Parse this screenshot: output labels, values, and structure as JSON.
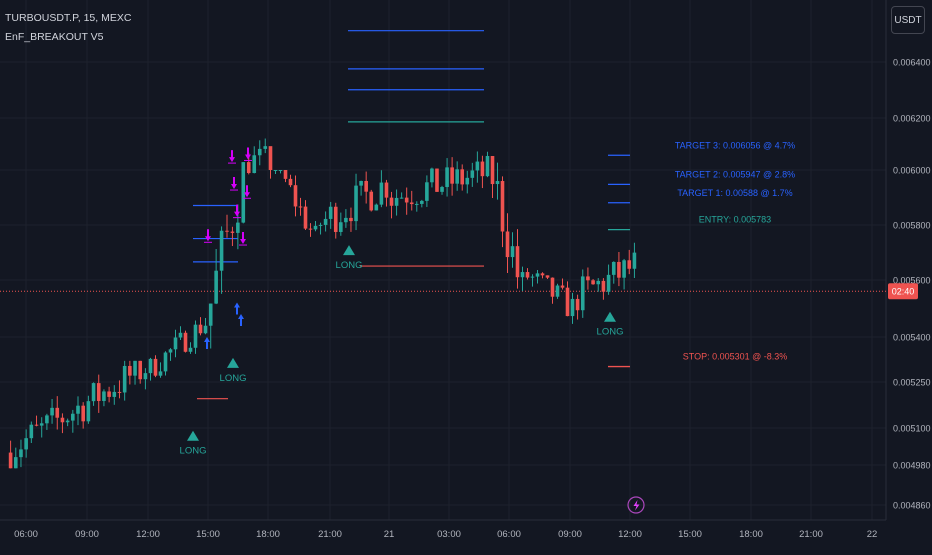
{
  "header": {
    "symbol": "TURBOUSDT.P, 15, MEXC",
    "indicator": "EnF_BREAKOUT V5",
    "currency": "USDT"
  },
  "colors": {
    "background": "#131722",
    "grid": "#1e222d",
    "up": "#26a69a",
    "down": "#ef5350",
    "signal": "#26a69a",
    "target": "#2962ff",
    "entry_line": "#26a69a",
    "stop_line": "#ef5350",
    "arrow_up": "#2962ff",
    "arrow_down": "#d500f9",
    "last_price": "#ef5350"
  },
  "chart_data": {
    "type": "candlestick",
    "x_ticks": [
      "06:00",
      "09:00",
      "12:00",
      "15:00",
      "18:00",
      "21:00",
      "21",
      "03:00",
      "06:00",
      "09:00",
      "12:00",
      "15:00",
      "18:00",
      "21:00",
      "22"
    ],
    "y_ticks": [
      "0.006400",
      "0.006200",
      "0.006000",
      "0.005800",
      "0.005600",
      "0.005400",
      "0.005250",
      "0.005100",
      "0.004980",
      "0.004860"
    ],
    "y_scale": "log",
    "last_price_label": "02:40",
    "last_price": 0.00556,
    "ohlc_approx": [
      {
        "segment": "06:00-12:00",
        "low": 0.00497,
        "high": 0.00532,
        "note": "uptrend from 0.00500 to 0.00530"
      },
      {
        "segment": "12:00-15:00",
        "low": 0.00522,
        "high": 0.00547,
        "note": "rise to 0.00545"
      },
      {
        "segment": "15:00-17:30",
        "low": 0.00532,
        "high": 0.00603,
        "note": "breakout from 0.00535 to 0.00600"
      },
      {
        "segment": "17:30-18:30",
        "low": 0.00588,
        "high": 0.0062,
        "note": "peak near 0.00618"
      },
      {
        "segment": "18:30-20:30",
        "low": 0.0057,
        "high": 0.006,
        "note": "pullback to 0.00575"
      },
      {
        "segment": "20:30-00:00",
        "low": 0.00575,
        "high": 0.00615,
        "note": "range 0.00580-0.00605"
      },
      {
        "segment": "00:00-04:00",
        "low": 0.0058,
        "high": 0.00618,
        "note": "range high near 0.00610"
      },
      {
        "segment": "04:00-07:00",
        "low": 0.00545,
        "high": 0.00605,
        "note": "drop to 0.00555"
      },
      {
        "segment": "07:00-09:30",
        "low": 0.00535,
        "high": 0.00565,
        "note": "low near 0.00538"
      },
      {
        "segment": "09:30-12:00",
        "low": 0.00545,
        "high": 0.00583,
        "note": "recovery to 0.00565"
      }
    ],
    "signals": [
      {
        "label": "LONG",
        "time": "14:45",
        "price": 0.00513
      },
      {
        "label": "LONG",
        "time": "16:15",
        "price": 0.00537
      },
      {
        "label": "LONG",
        "time": "21:45",
        "price": 0.00577
      },
      {
        "label": "LONG",
        "time": "10:45",
        "price": 0.00553
      }
    ],
    "trade_levels": [
      {
        "label": "TARGET 3: 0.006056 @ 4.7%",
        "price": 0.006056
      },
      {
        "label": "TARGET 2: 0.005947 @ 2.8%",
        "price": 0.005947
      },
      {
        "label": "TARGET 1: 0.00588 @ 1.7%",
        "price": 0.00588
      },
      {
        "label": "ENTRY: 0.005783",
        "price": 0.005783
      },
      {
        "label": "STOP: 0.005301 @ -8.3%",
        "price": 0.005301
      }
    ],
    "extra_marker": "lightning-bolt"
  }
}
